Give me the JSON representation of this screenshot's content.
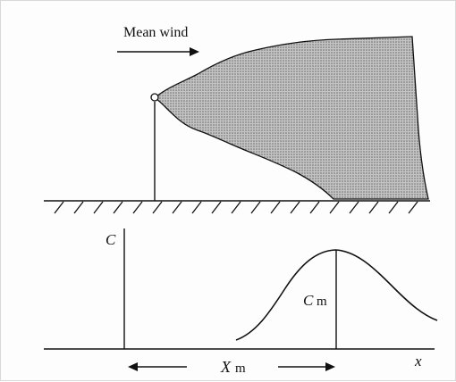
{
  "labels": {
    "mean_wind": "Mean wind",
    "c_axis": "C",
    "c_max": "C",
    "c_max_sub": "m",
    "x_max": "X",
    "x_max_sub": "m",
    "x_axis": "x"
  },
  "colors": {
    "ink": "#111111",
    "plume_fill": "#b8b8b8"
  }
}
